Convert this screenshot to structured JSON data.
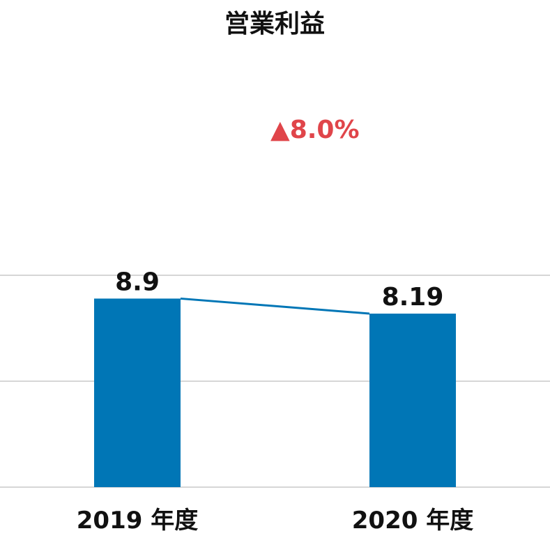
{
  "chart_data": {
    "type": "bar",
    "title": "営業利益",
    "categories": [
      "2019 年度",
      "2020 年度"
    ],
    "values": [
      8.9,
      8.19
    ],
    "value_labels": [
      "8.9",
      "8.19"
    ],
    "ylim": [
      0,
      10
    ],
    "grid": true,
    "legend": "none",
    "connector_line": true,
    "annotation": {
      "symbol": "▲",
      "text": "8.0%"
    }
  },
  "colors": {
    "bar": "#0076b6",
    "connector": "#0076b6",
    "annotation": "#e0454a",
    "grid": "#c8c8c8",
    "text": "#111111"
  }
}
